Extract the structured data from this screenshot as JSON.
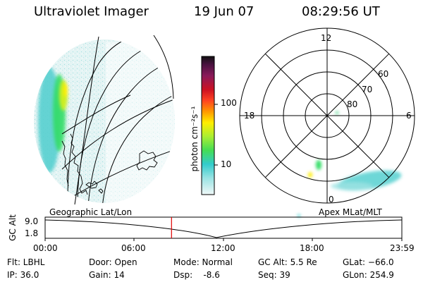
{
  "header": {
    "title": "Ultraviolet Imager",
    "date": "19 Jun 07",
    "time": "08:29:56 UT"
  },
  "colorbar": {
    "label": "photon cm⁻²s⁻¹",
    "ticks": [
      "100",
      "10"
    ]
  },
  "polar_plot": {
    "mlt_labels": {
      "top": "12",
      "right": "6",
      "bottom": "0",
      "left": "18"
    },
    "lat_labels": [
      "60",
      "70",
      "80"
    ]
  },
  "panels": {
    "left_caption": "Geographic Lat/Lon",
    "right_caption": "Apex  MLat/MLT"
  },
  "altitude_strip": {
    "axis_label": "GC Alt",
    "yticks": [
      "9.0",
      "1.8"
    ],
    "xticks": [
      "00:00",
      "06:00",
      "12:00",
      "18:00",
      "23:59"
    ],
    "marker_time": "08:29:56"
  },
  "info": {
    "flt": "Flt: LBHL",
    "ip": "IP: 36.0",
    "door": "Door: Open",
    "gain": "Gain: 14",
    "mode": "Mode: Normal",
    "dsp": "Dsp:    -8.6",
    "gcalt": "GC Alt: 5.5 Re",
    "seq": "Seq: 39",
    "glat": "GLat: −66.0",
    "glon": "GLon: 254.9"
  },
  "colors": {
    "marker": "#e00000",
    "emission_bright": "#ffee00",
    "emission_mid": "#33dd66",
    "emission_low": "#33cccc"
  }
}
